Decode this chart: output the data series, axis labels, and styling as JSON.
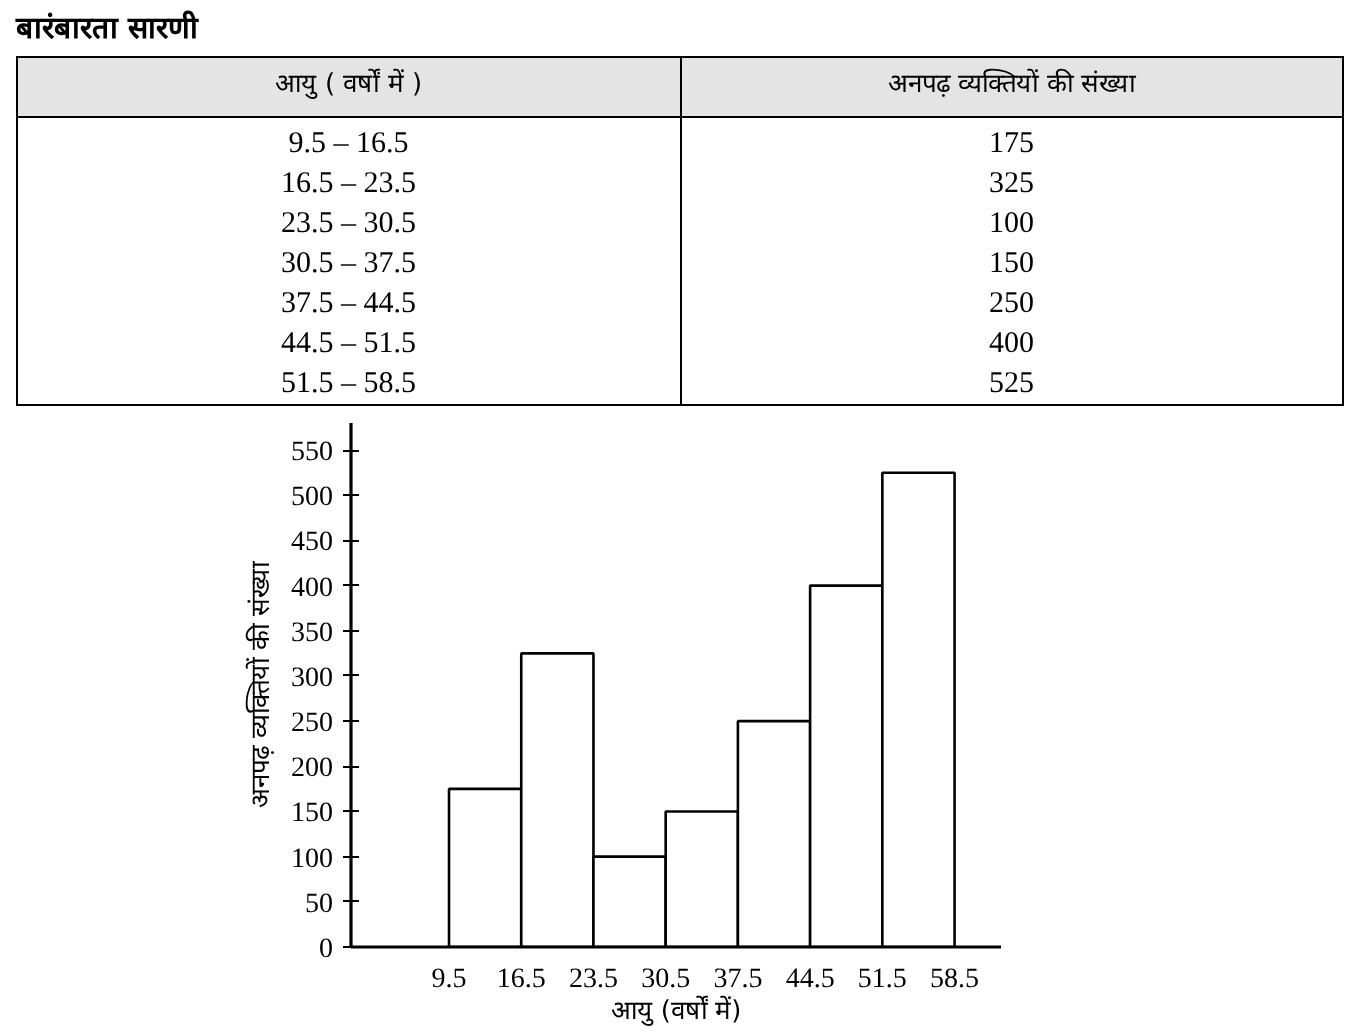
{
  "chart_data": {
    "type": "histogram",
    "title": "बारंबारता सारणी",
    "xlabel": "आयु (वर्षों में)",
    "ylabel": "अनपढ़ व्यक्तियों की संख्या",
    "bins": [
      9.5,
      16.5,
      23.5,
      30.5,
      37.5,
      44.5,
      51.5,
      58.5
    ],
    "values": [
      175,
      325,
      100,
      150,
      250,
      400,
      525
    ],
    "color": "#ffffff",
    "xlim": [
      0,
      63
    ],
    "ylim": [
      0,
      580
    ],
    "xticks": [
      9.5,
      16.5,
      23.5,
      30.5,
      37.5,
      44.5,
      51.5,
      58.5
    ],
    "yticks": [
      0,
      50,
      100,
      150,
      200,
      250,
      300,
      350,
      400,
      450,
      500,
      550
    ],
    "grid": false,
    "annotations": [
      "आयु ( वर्षों में )",
      "अनपढ़ व्यक्तियों की संख्या",
      "9.5 – 16.5",
      "16.5 – 23.5",
      "23.5 – 30.5",
      "30.5 – 37.5",
      "37.5 – 44.5",
      "44.5 – 51.5",
      "51.5 – 58.5",
      "175",
      "325",
      "100",
      "150",
      "250",
      "400",
      "525"
    ]
  }
}
